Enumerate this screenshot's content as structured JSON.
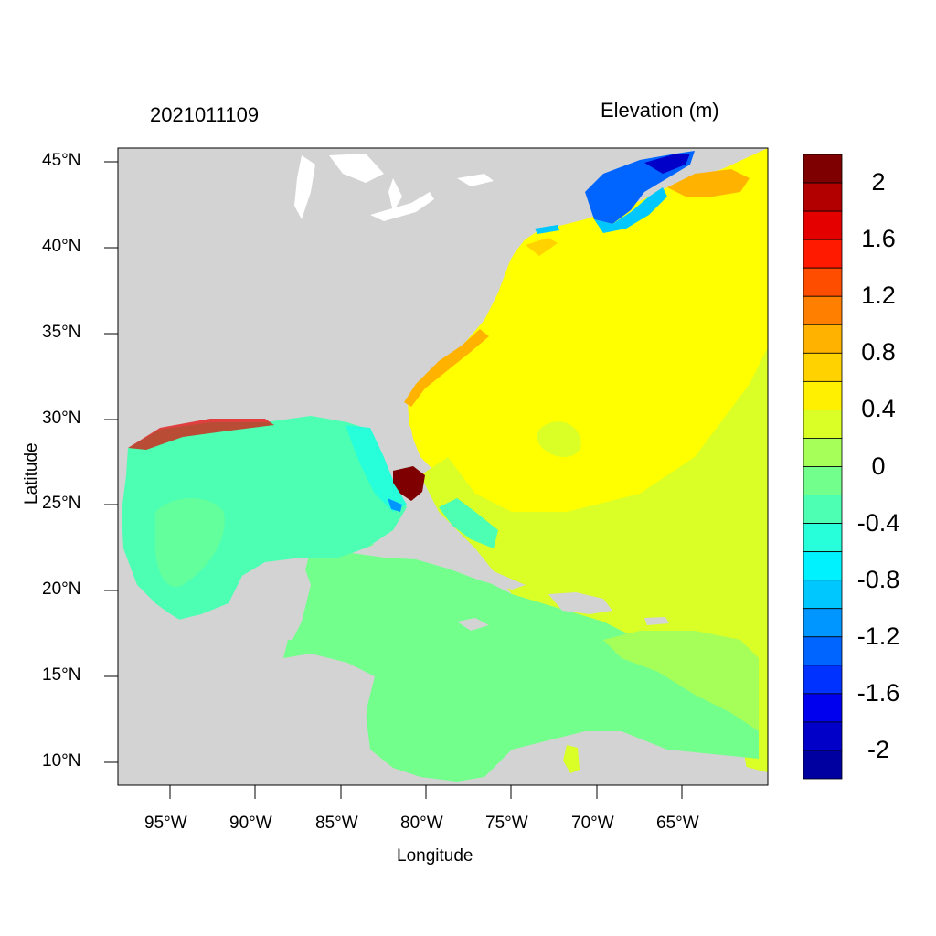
{
  "map": {
    "date_label": "2021011109",
    "field_label": "Elevation (m)",
    "x_axis_label": "Longitude",
    "y_axis_label": "Latitude",
    "lat_ticks": [
      "45°N",
      "40°N",
      "35°N",
      "30°N",
      "25°N",
      "20°N",
      "15°N",
      "10°N"
    ],
    "lon_ticks": [
      "95°W",
      "90°W",
      "85°W",
      "80°W",
      "75°W",
      "70°W",
      "65°W"
    ],
    "land_color": "#d3d3d3",
    "colorbar": {
      "labels": [
        "2",
        "1.6",
        "1.2",
        "0.8",
        "0.4",
        "0",
        "-0.4",
        "-0.8",
        "-1.2",
        "-1.6",
        "-2"
      ],
      "colors": [
        "#7f0000",
        "#b20000",
        "#e50000",
        "#ff1a00",
        "#ff4d00",
        "#ff8000",
        "#ffb300",
        "#ffd200",
        "#ffef00",
        "#d9ff26",
        "#a6ff59",
        "#73ff8c",
        "#4dffb3",
        "#26ffd9",
        "#00f2ff",
        "#00c8ff",
        "#0096ff",
        "#0064ff",
        "#0032ff",
        "#0000ee",
        "#0000c8",
        "#0000a0"
      ]
    }
  }
}
